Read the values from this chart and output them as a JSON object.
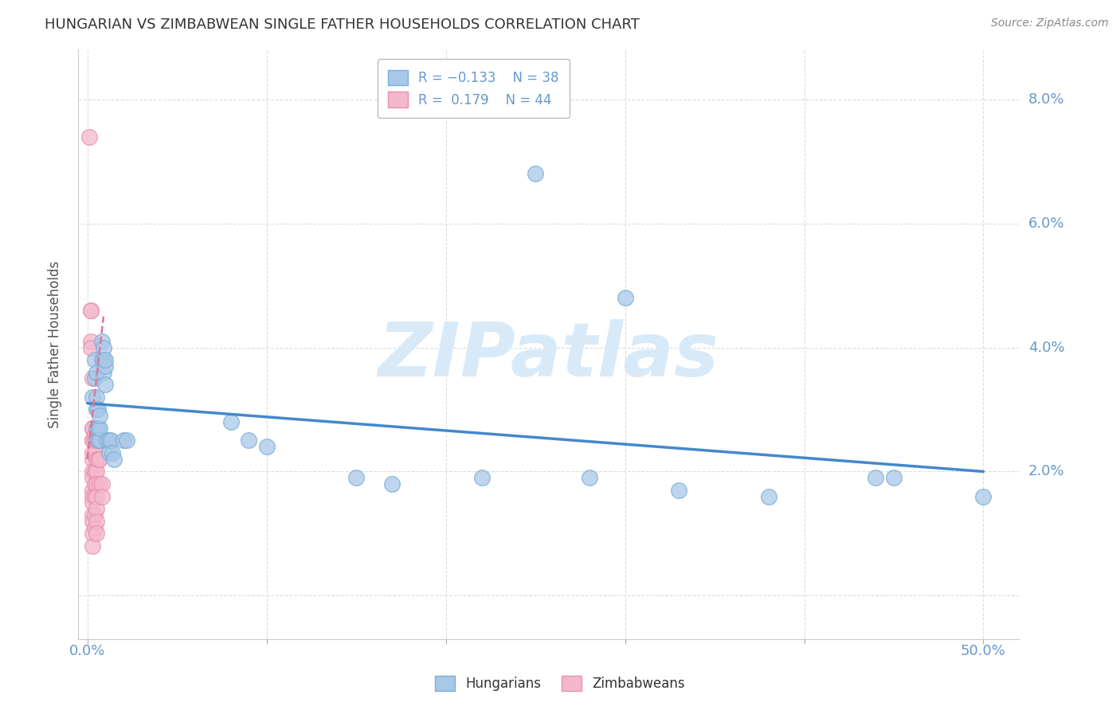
{
  "title": "HUNGARIAN VS ZIMBABWEAN SINGLE FATHER HOUSEHOLDS CORRELATION CHART",
  "source": "Source: ZipAtlas.com",
  "ylabel": "Single Father Households",
  "ytick_labels": [
    "",
    "2.0%",
    "4.0%",
    "6.0%",
    "8.0%"
  ],
  "ytick_values": [
    0.0,
    0.02,
    0.04,
    0.06,
    0.08
  ],
  "xtick_values": [
    0.0,
    0.1,
    0.2,
    0.3,
    0.4,
    0.5
  ],
  "xlim": [
    -0.005,
    0.52
  ],
  "ylim": [
    -0.007,
    0.088
  ],
  "legend_labels": [
    "Hungarians",
    "Zimbabweans"
  ],
  "hungarian_color": "#a8c8e8",
  "zimbabwean_color": "#f4b8cc",
  "hungarian_edge_color": "#7aaed4",
  "zimbabwean_edge_color": "#e890aa",
  "trend_hungarian_color": "#4488cc",
  "trend_zimbabwean_color": "#dd7799",
  "watermark_text": "ZIPatlas",
  "watermark_color": "#d8eaf8",
  "hungarian_points": [
    [
      0.003,
      0.032
    ],
    [
      0.004,
      0.035
    ],
    [
      0.004,
      0.038
    ],
    [
      0.005,
      0.027
    ],
    [
      0.005,
      0.03
    ],
    [
      0.005,
      0.032
    ],
    [
      0.005,
      0.036
    ],
    [
      0.006,
      0.025
    ],
    [
      0.006,
      0.027
    ],
    [
      0.006,
      0.03
    ],
    [
      0.007,
      0.025
    ],
    [
      0.007,
      0.027
    ],
    [
      0.007,
      0.029
    ],
    [
      0.008,
      0.038
    ],
    [
      0.008,
      0.041
    ],
    [
      0.009,
      0.036
    ],
    [
      0.009,
      0.038
    ],
    [
      0.009,
      0.04
    ],
    [
      0.01,
      0.034
    ],
    [
      0.01,
      0.037
    ],
    [
      0.01,
      0.038
    ],
    [
      0.011,
      0.025
    ],
    [
      0.012,
      0.025
    ],
    [
      0.012,
      0.023
    ],
    [
      0.013,
      0.025
    ],
    [
      0.014,
      0.023
    ],
    [
      0.015,
      0.022
    ],
    [
      0.02,
      0.025
    ],
    [
      0.022,
      0.025
    ],
    [
      0.08,
      0.028
    ],
    [
      0.09,
      0.025
    ],
    [
      0.1,
      0.024
    ],
    [
      0.15,
      0.019
    ],
    [
      0.17,
      0.018
    ],
    [
      0.22,
      0.019
    ],
    [
      0.25,
      0.068
    ],
    [
      0.28,
      0.019
    ],
    [
      0.3,
      0.048
    ],
    [
      0.33,
      0.017
    ],
    [
      0.38,
      0.016
    ],
    [
      0.44,
      0.019
    ],
    [
      0.45,
      0.019
    ],
    [
      0.5,
      0.016
    ]
  ],
  "zimbabwean_points": [
    [
      0.001,
      0.074
    ],
    [
      0.002,
      0.046
    ],
    [
      0.002,
      0.046
    ],
    [
      0.002,
      0.041
    ],
    [
      0.002,
      0.04
    ],
    [
      0.003,
      0.035
    ],
    [
      0.003,
      0.027
    ],
    [
      0.003,
      0.027
    ],
    [
      0.003,
      0.025
    ],
    [
      0.003,
      0.025
    ],
    [
      0.003,
      0.023
    ],
    [
      0.003,
      0.022
    ],
    [
      0.003,
      0.02
    ],
    [
      0.003,
      0.019
    ],
    [
      0.003,
      0.017
    ],
    [
      0.003,
      0.016
    ],
    [
      0.003,
      0.015
    ],
    [
      0.003,
      0.013
    ],
    [
      0.003,
      0.012
    ],
    [
      0.003,
      0.01
    ],
    [
      0.003,
      0.008
    ],
    [
      0.004,
      0.025
    ],
    [
      0.004,
      0.023
    ],
    [
      0.004,
      0.02
    ],
    [
      0.004,
      0.018
    ],
    [
      0.004,
      0.016
    ],
    [
      0.004,
      0.013
    ],
    [
      0.004,
      0.011
    ],
    [
      0.004,
      0.026
    ],
    [
      0.005,
      0.025
    ],
    [
      0.005,
      0.022
    ],
    [
      0.005,
      0.02
    ],
    [
      0.005,
      0.018
    ],
    [
      0.005,
      0.016
    ],
    [
      0.005,
      0.014
    ],
    [
      0.005,
      0.012
    ],
    [
      0.005,
      0.01
    ],
    [
      0.006,
      0.025
    ],
    [
      0.006,
      0.022
    ],
    [
      0.007,
      0.025
    ],
    [
      0.007,
      0.022
    ],
    [
      0.007,
      0.018
    ],
    [
      0.008,
      0.018
    ],
    [
      0.008,
      0.016
    ]
  ],
  "hungarian_trend_x": [
    0.0,
    0.5
  ],
  "hungarian_trend_y": [
    0.031,
    0.02
  ],
  "zimbabwean_trend_x": [
    0.0,
    0.009
  ],
  "zimbabwean_trend_y": [
    0.022,
    0.045
  ],
  "background_color": "#ffffff",
  "grid_color": "#dddddd",
  "axis_color": "#6699cc",
  "title_color": "#333333",
  "bottom_label_color": "#333333",
  "fig_width": 14.06,
  "fig_height": 8.92
}
